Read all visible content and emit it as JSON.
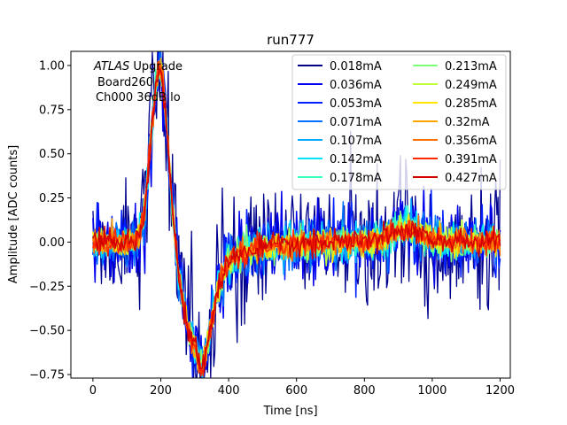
{
  "chart_data": {
    "type": "line",
    "title": "run777",
    "xlabel": "Time [ns]",
    "ylabel": "Amplitude [ADC counts]",
    "xlim": [
      -65,
      1230
    ],
    "ylim": [
      -0.77,
      1.08
    ],
    "xticks": [
      0,
      200,
      400,
      600,
      800,
      1000,
      1200
    ],
    "yticks": [
      -0.75,
      -0.5,
      -0.25,
      0.0,
      0.25,
      0.5,
      0.75,
      1.0
    ],
    "xtick_labels": [
      "0",
      "200",
      "400",
      "600",
      "800",
      "1000",
      "1200"
    ],
    "ytick_labels": [
      "−0.75",
      "−0.50",
      "−0.25",
      "0.00",
      "0.25",
      "0.50",
      "0.75",
      "1.00"
    ],
    "grid": false,
    "legend_position": "top-right",
    "legend_columns": 2,
    "annotation": {
      "italic": "ATLAS",
      "rest": " Upgrade",
      "line2": "Board260",
      "line3": "Ch000 36dB lo"
    },
    "x_range": [
      0,
      1200
    ],
    "sample_step_ns": 3.125,
    "pulse_shape": {
      "peak_time_ns": 197,
      "peak_value": 1.0,
      "undershoot_time_ns": 305,
      "undershoot_value": -0.6,
      "bump_time_ns": 920,
      "bump_value": 0.08
    },
    "series": [
      {
        "name": "0.018mA",
        "color": "#00008f",
        "noise_amplitude": 0.19
      },
      {
        "name": "0.036mA",
        "color": "#0000ee",
        "noise_amplitude": 0.115
      },
      {
        "name": "0.053mA",
        "color": "#0020ff",
        "noise_amplitude": 0.085
      },
      {
        "name": "0.071mA",
        "color": "#0070ff",
        "noise_amplitude": 0.068
      },
      {
        "name": "0.107mA",
        "color": "#00a8ff",
        "noise_amplitude": 0.055
      },
      {
        "name": "0.142mA",
        "color": "#00e4f8",
        "noise_amplitude": 0.048
      },
      {
        "name": "0.178mA",
        "color": "#37ffc0",
        "noise_amplitude": 0.043
      },
      {
        "name": "0.213mA",
        "color": "#7cff79",
        "noise_amplitude": 0.04
      },
      {
        "name": "0.249mA",
        "color": "#c0ff37",
        "noise_amplitude": 0.038
      },
      {
        "name": "0.285mA",
        "color": "#ffe600",
        "noise_amplitude": 0.036
      },
      {
        "name": "0.32mA",
        "color": "#ffa700",
        "noise_amplitude": 0.035
      },
      {
        "name": "0.356mA",
        "color": "#ff6d00",
        "noise_amplitude": 0.034
      },
      {
        "name": "0.391mA",
        "color": "#ff2900",
        "noise_amplitude": 0.033
      },
      {
        "name": "0.427mA",
        "color": "#d40000",
        "noise_amplitude": 0.032
      }
    ]
  }
}
